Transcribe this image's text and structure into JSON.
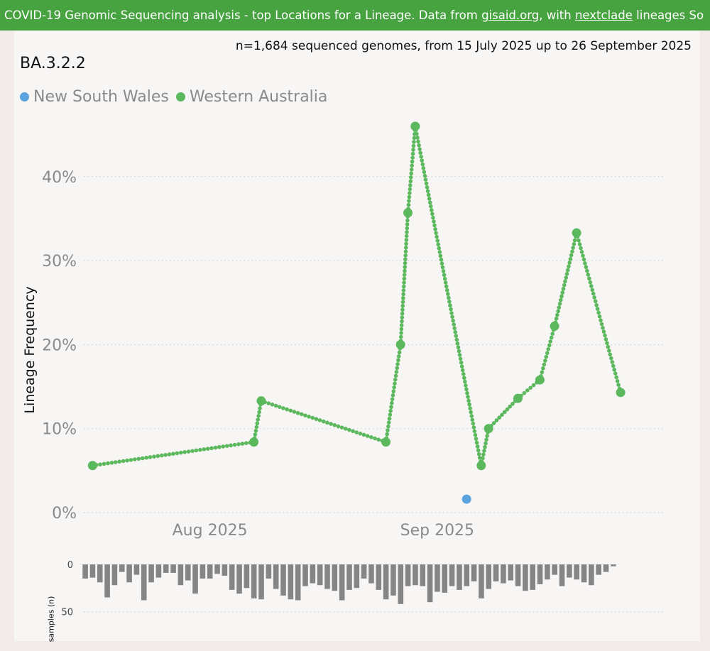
{
  "header": {
    "text_before": "COVID-19 Genomic Sequencing analysis - top Locations for a Lineage. Data from ",
    "link1": "gisaid.org",
    "text_middle": ", with ",
    "link2": "nextclade",
    "text_after": " lineages So",
    "bar_color": "#47a340"
  },
  "chart_header": {
    "subtitle": "n=1,684 sequenced genomes, from 15 July 2025 up to 26 September 2025",
    "lineage": "BA.3.2.2"
  },
  "chart_data": [
    {
      "type": "line",
      "title": "BA.3.2.2",
      "ylabel": "Lineage Frequency",
      "xlabel": "",
      "y_unit": "percent",
      "ylim": [
        0,
        50
      ],
      "yticks": [
        0,
        10,
        20,
        30,
        40
      ],
      "ytick_labels": [
        "0%",
        "10%",
        "20%",
        "30%",
        "40%"
      ],
      "xlim": [
        "2025-07-15",
        "2025-09-26"
      ],
      "xticks": [
        "2025-08-01",
        "2025-09-01"
      ],
      "xtick_labels": [
        "Aug 2025",
        "Sep 2025"
      ],
      "grid": "horizontal dotted",
      "legend_position": "top-left",
      "series": [
        {
          "name": "New South Wales",
          "color": "#5aa3de",
          "points": [
            {
              "x": "2025-09-05",
              "y": 1.6
            }
          ]
        },
        {
          "name": "Western Australia",
          "color": "#5cb85c",
          "points": [
            {
              "x": "2025-07-16",
              "y": 5.6
            },
            {
              "x": "2025-08-07",
              "y": 8.4
            },
            {
              "x": "2025-08-08",
              "y": 13.3
            },
            {
              "x": "2025-08-25",
              "y": 8.4
            },
            {
              "x": "2025-08-27",
              "y": 20.0
            },
            {
              "x": "2025-08-28",
              "y": 35.7
            },
            {
              "x": "2025-08-29",
              "y": 46.0
            },
            {
              "x": "2025-09-07",
              "y": 5.6
            },
            {
              "x": "2025-09-08",
              "y": 10.0
            },
            {
              "x": "2025-09-12",
              "y": 13.6
            },
            {
              "x": "2025-09-15",
              "y": 15.8
            },
            {
              "x": "2025-09-17",
              "y": 22.2
            },
            {
              "x": "2025-09-20",
              "y": 33.3
            },
            {
              "x": "2025-09-26",
              "y": 14.3
            }
          ]
        }
      ]
    },
    {
      "type": "bar",
      "ylabel": "samples (n)",
      "yticks": [
        0,
        50
      ],
      "ylim": [
        0,
        50
      ],
      "inverted": true,
      "color": "#858585",
      "x_start": "2025-07-15",
      "x_step_days": 1,
      "values": [
        15,
        14,
        19,
        35,
        22,
        8,
        19,
        11,
        38,
        19,
        14,
        9,
        9,
        22,
        17,
        31,
        15,
        15,
        10,
        12,
        27,
        31,
        25,
        36,
        37,
        15,
        26,
        33,
        37,
        38,
        23,
        20,
        22,
        26,
        28,
        38,
        27,
        25,
        15,
        20,
        27,
        37,
        33,
        42,
        23,
        22,
        23,
        40,
        29,
        30,
        23,
        27,
        23,
        18,
        36,
        26,
        18,
        20,
        17,
        23,
        28,
        27,
        21,
        16,
        11,
        23,
        14,
        16,
        19,
        22,
        11,
        8,
        2
      ]
    }
  ]
}
